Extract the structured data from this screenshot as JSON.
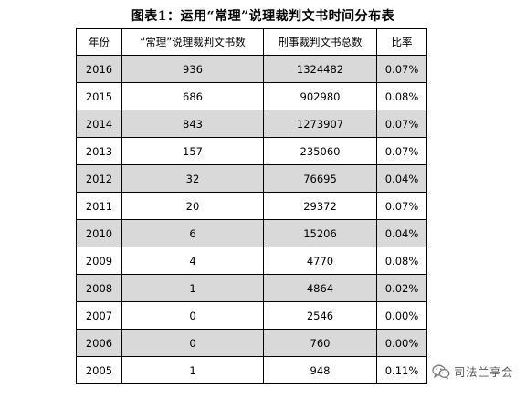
{
  "title": "图表1：运用“常理”说理裁判文书时间分布表",
  "table": {
    "headers": [
      "年份",
      "“常理”说理裁判文书数",
      "刑事裁判文书总数",
      "比率"
    ],
    "rows": [
      {
        "year": "2016",
        "count": "936",
        "total": "1324482",
        "ratio": "0.07%",
        "shaded": true
      },
      {
        "year": "2015",
        "count": "686",
        "total": "902980",
        "ratio": "0.08%",
        "shaded": false
      },
      {
        "year": "2014",
        "count": "843",
        "total": "1273907",
        "ratio": "0.07%",
        "shaded": true
      },
      {
        "year": "2013",
        "count": "157",
        "total": "235060",
        "ratio": "0.07%",
        "shaded": false
      },
      {
        "year": "2012",
        "count": "32",
        "total": "76695",
        "ratio": "0.04%",
        "shaded": true
      },
      {
        "year": "2011",
        "count": "20",
        "total": "29372",
        "ratio": "0.07%",
        "shaded": false
      },
      {
        "year": "2010",
        "count": "6",
        "total": "15206",
        "ratio": "0.04%",
        "shaded": true
      },
      {
        "year": "2009",
        "count": "4",
        "total": "4770",
        "ratio": "0.08%",
        "shaded": false
      },
      {
        "year": "2008",
        "count": "1",
        "total": "4864",
        "ratio": "0.02%",
        "shaded": true
      },
      {
        "year": "2007",
        "count": "0",
        "total": "2546",
        "ratio": "0.00%",
        "shaded": false
      },
      {
        "year": "2006",
        "count": "0",
        "total": "760",
        "ratio": "0.00%",
        "shaded": true
      },
      {
        "year": "2005",
        "count": "1",
        "total": "948",
        "ratio": "0.11%",
        "shaded": false
      }
    ],
    "shade_color": "#d9d9d9"
  },
  "watermark": {
    "icon": "wechat-icon",
    "text": "司法兰亭会"
  }
}
